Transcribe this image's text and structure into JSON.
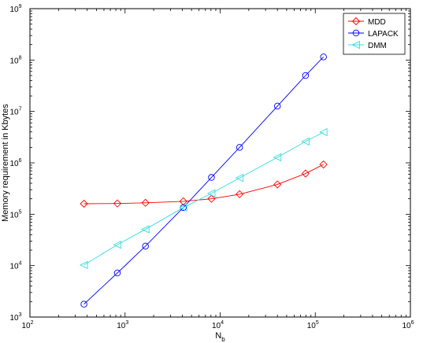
{
  "chart_data": {
    "type": "line",
    "xscale": "log",
    "yscale": "log",
    "xlim": [
      100,
      1000000
    ],
    "ylim": [
      1000,
      1000000000
    ],
    "xlabel": "N",
    "xlabel_sub": "b",
    "ylabel": "Memory requirement in Kbytes",
    "grid": false,
    "legend_position": "top-right",
    "x_ticks": [
      {
        "base": "10",
        "exp": "2"
      },
      {
        "base": "10",
        "exp": "3"
      },
      {
        "base": "10",
        "exp": "4"
      },
      {
        "base": "10",
        "exp": "5"
      },
      {
        "base": "10",
        "exp": "6"
      }
    ],
    "y_ticks": [
      {
        "base": "10",
        "exp": "3"
      },
      {
        "base": "10",
        "exp": "4"
      },
      {
        "base": "10",
        "exp": "5"
      },
      {
        "base": "10",
        "exp": "6"
      },
      {
        "base": "10",
        "exp": "7"
      },
      {
        "base": "10",
        "exp": "8"
      },
      {
        "base": "10",
        "exp": "9"
      }
    ],
    "series": [
      {
        "name": "MDD",
        "color": "#ff0000",
        "marker": "diamond",
        "x": [
          370,
          830,
          1640,
          4100,
          8100,
          16000,
          40000,
          79000,
          122000
        ],
        "y": [
          160000,
          162000,
          167000,
          178000,
          200000,
          245000,
          380000,
          620000,
          930000
        ]
      },
      {
        "name": "LAPACK",
        "color": "#0000ff",
        "marker": "circle",
        "x": [
          370,
          830,
          1640,
          4100,
          8100,
          16000,
          40000,
          79000,
          122000
        ],
        "y": [
          1780,
          7200,
          24000,
          135000,
          520000,
          2000000,
          12700000,
          50000000,
          115000000
        ]
      },
      {
        "name": "DMM",
        "color": "#33dddd",
        "marker": "triangle-left",
        "x": [
          370,
          830,
          1640,
          4100,
          8100,
          16000,
          40000,
          79000,
          122000
        ],
        "y": [
          10300,
          25500,
          51000,
          135000,
          255000,
          510000,
          1280000,
          2600000,
          3950000
        ]
      }
    ]
  }
}
